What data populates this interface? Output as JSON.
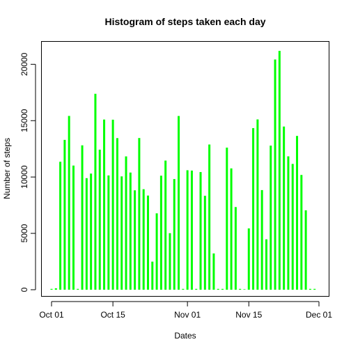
{
  "chart_data": {
    "type": "bar",
    "title": "Histogram of steps taken each day",
    "xlabel": "Dates",
    "ylabel": "Number of steps",
    "color": "#00FF00",
    "xlim": [
      "2012-10-01",
      "2012-12-01"
    ],
    "ylim": [
      0,
      21194
    ],
    "x_ticks": [
      {
        "date": "2012-10-01",
        "label": "Oct 01"
      },
      {
        "date": "2012-10-15",
        "label": "Oct 15"
      },
      {
        "date": "2012-11-01",
        "label": "Nov 01"
      },
      {
        "date": "2012-11-15",
        "label": "Nov 15"
      },
      {
        "date": "2012-12-01",
        "label": "Dec 01"
      }
    ],
    "y_ticks": [
      0,
      5000,
      10000,
      15000,
      20000
    ],
    "y_tick_labels": [
      "0",
      "5000",
      "10000",
      "15000",
      "20000"
    ],
    "grid": false,
    "dates": [
      "2012-10-01",
      "2012-10-02",
      "2012-10-03",
      "2012-10-04",
      "2012-10-05",
      "2012-10-06",
      "2012-10-07",
      "2012-10-08",
      "2012-10-09",
      "2012-10-10",
      "2012-10-11",
      "2012-10-12",
      "2012-10-13",
      "2012-10-14",
      "2012-10-15",
      "2012-10-16",
      "2012-10-17",
      "2012-10-18",
      "2012-10-19",
      "2012-10-20",
      "2012-10-21",
      "2012-10-22",
      "2012-10-23",
      "2012-10-24",
      "2012-10-25",
      "2012-10-26",
      "2012-10-27",
      "2012-10-28",
      "2012-10-29",
      "2012-10-30",
      "2012-10-31",
      "2012-11-01",
      "2012-11-02",
      "2012-11-03",
      "2012-11-04",
      "2012-11-05",
      "2012-11-06",
      "2012-11-07",
      "2012-11-08",
      "2012-11-09",
      "2012-11-10",
      "2012-11-11",
      "2012-11-12",
      "2012-11-13",
      "2012-11-14",
      "2012-11-15",
      "2012-11-16",
      "2012-11-17",
      "2012-11-18",
      "2012-11-19",
      "2012-11-20",
      "2012-11-21",
      "2012-11-22",
      "2012-11-23",
      "2012-11-24",
      "2012-11-25",
      "2012-11-26",
      "2012-11-27",
      "2012-11-28",
      "2012-11-29",
      "2012-11-30"
    ],
    "values": [
      0,
      126,
      11352,
      13294,
      15420,
      11015,
      0,
      12811,
      9900,
      10304,
      17382,
      12426,
      15098,
      10139,
      15084,
      13452,
      10056,
      11829,
      10395,
      8821,
      13460,
      8918,
      8355,
      2492,
      6778,
      10119,
      11458,
      5018,
      9819,
      15414,
      0,
      10600,
      10571,
      0,
      10439,
      8334,
      12883,
      3219,
      0,
      0,
      12608,
      10765,
      7336,
      0,
      41,
      5441,
      14339,
      15110,
      8841,
      4472,
      12787,
      20427,
      21194,
      14478,
      11834,
      11162,
      13646,
      10183,
      7047,
      0,
      0
    ]
  }
}
